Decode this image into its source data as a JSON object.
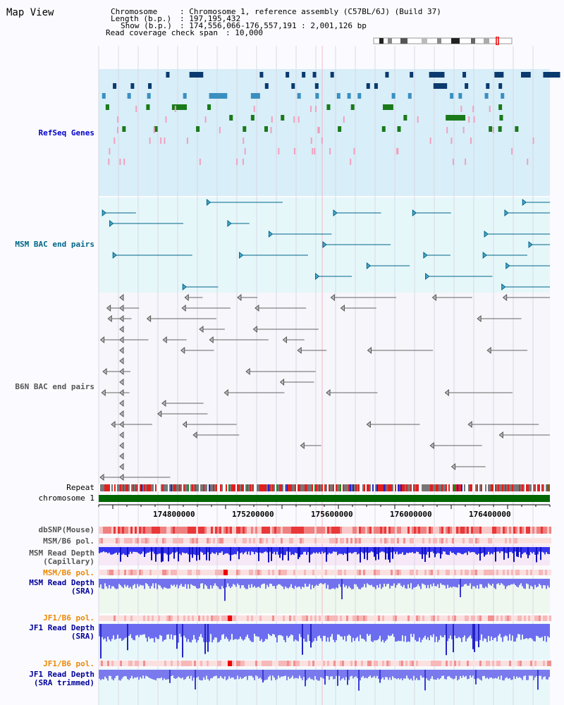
{
  "header": {
    "title": "Map View",
    "chromosome_label": "Chromosome",
    "chromosome_value": ": Chromosome 1, reference assembly (C57BL/6J) (Build 37)",
    "length_label": "Length (b.p.)",
    "length_value": ": 197,195,432",
    "show_label": "Show (b.p.)",
    "show_value": ": 174,556,066-176,557,191 : 2,001,126 bp",
    "coverage_label": "Read coverage check span",
    "coverage_value": ": 10,000"
  },
  "tracks": {
    "refseq": "RefSeq Genes",
    "msm_bac": "MSM BAC end pairs",
    "b6n_bac": "B6N BAC end pairs",
    "repeat": "Repeat",
    "chromosome": "chromosome 1",
    "dbsnp": "dbSNP(Mouse)",
    "msm_b6_pol_1": "MSM/B6 pol.",
    "msm_depth_cap_1": "MSM Read Depth",
    "msm_depth_cap_2": "(Capillary)",
    "msm_b6_pol_2": "MSM/B6 pol.",
    "msm_depth_sra_1": "MSM Read Depth",
    "msm_depth_sra_2": "(SRA)",
    "jf1_b6_pol_1": "JF1/B6 pol.",
    "jf1_depth_sra_1": "JF1 Read Depth",
    "jf1_depth_sra_2": "(SRA)",
    "jf1_b6_pol_2": "JF1/B6 pol.",
    "jf1_depth_trim_1": "JF1 Read Depth",
    "jf1_depth_trim_2": "(SRA trimmed)"
  },
  "axis": {
    "ticks": [
      "174800000",
      "175200000",
      "175600000",
      "176000000",
      "176400000"
    ]
  },
  "colors": {
    "refseq_label": "#0000cc",
    "msm_label": "#006688",
    "b6n_label": "#555555",
    "pol_orange": "#ee8800",
    "depth_blue": "#000099",
    "chrom_green": "#006600",
    "refseq_bg": "#d8eef8",
    "msm_bg": "#e6f7fa"
  }
}
